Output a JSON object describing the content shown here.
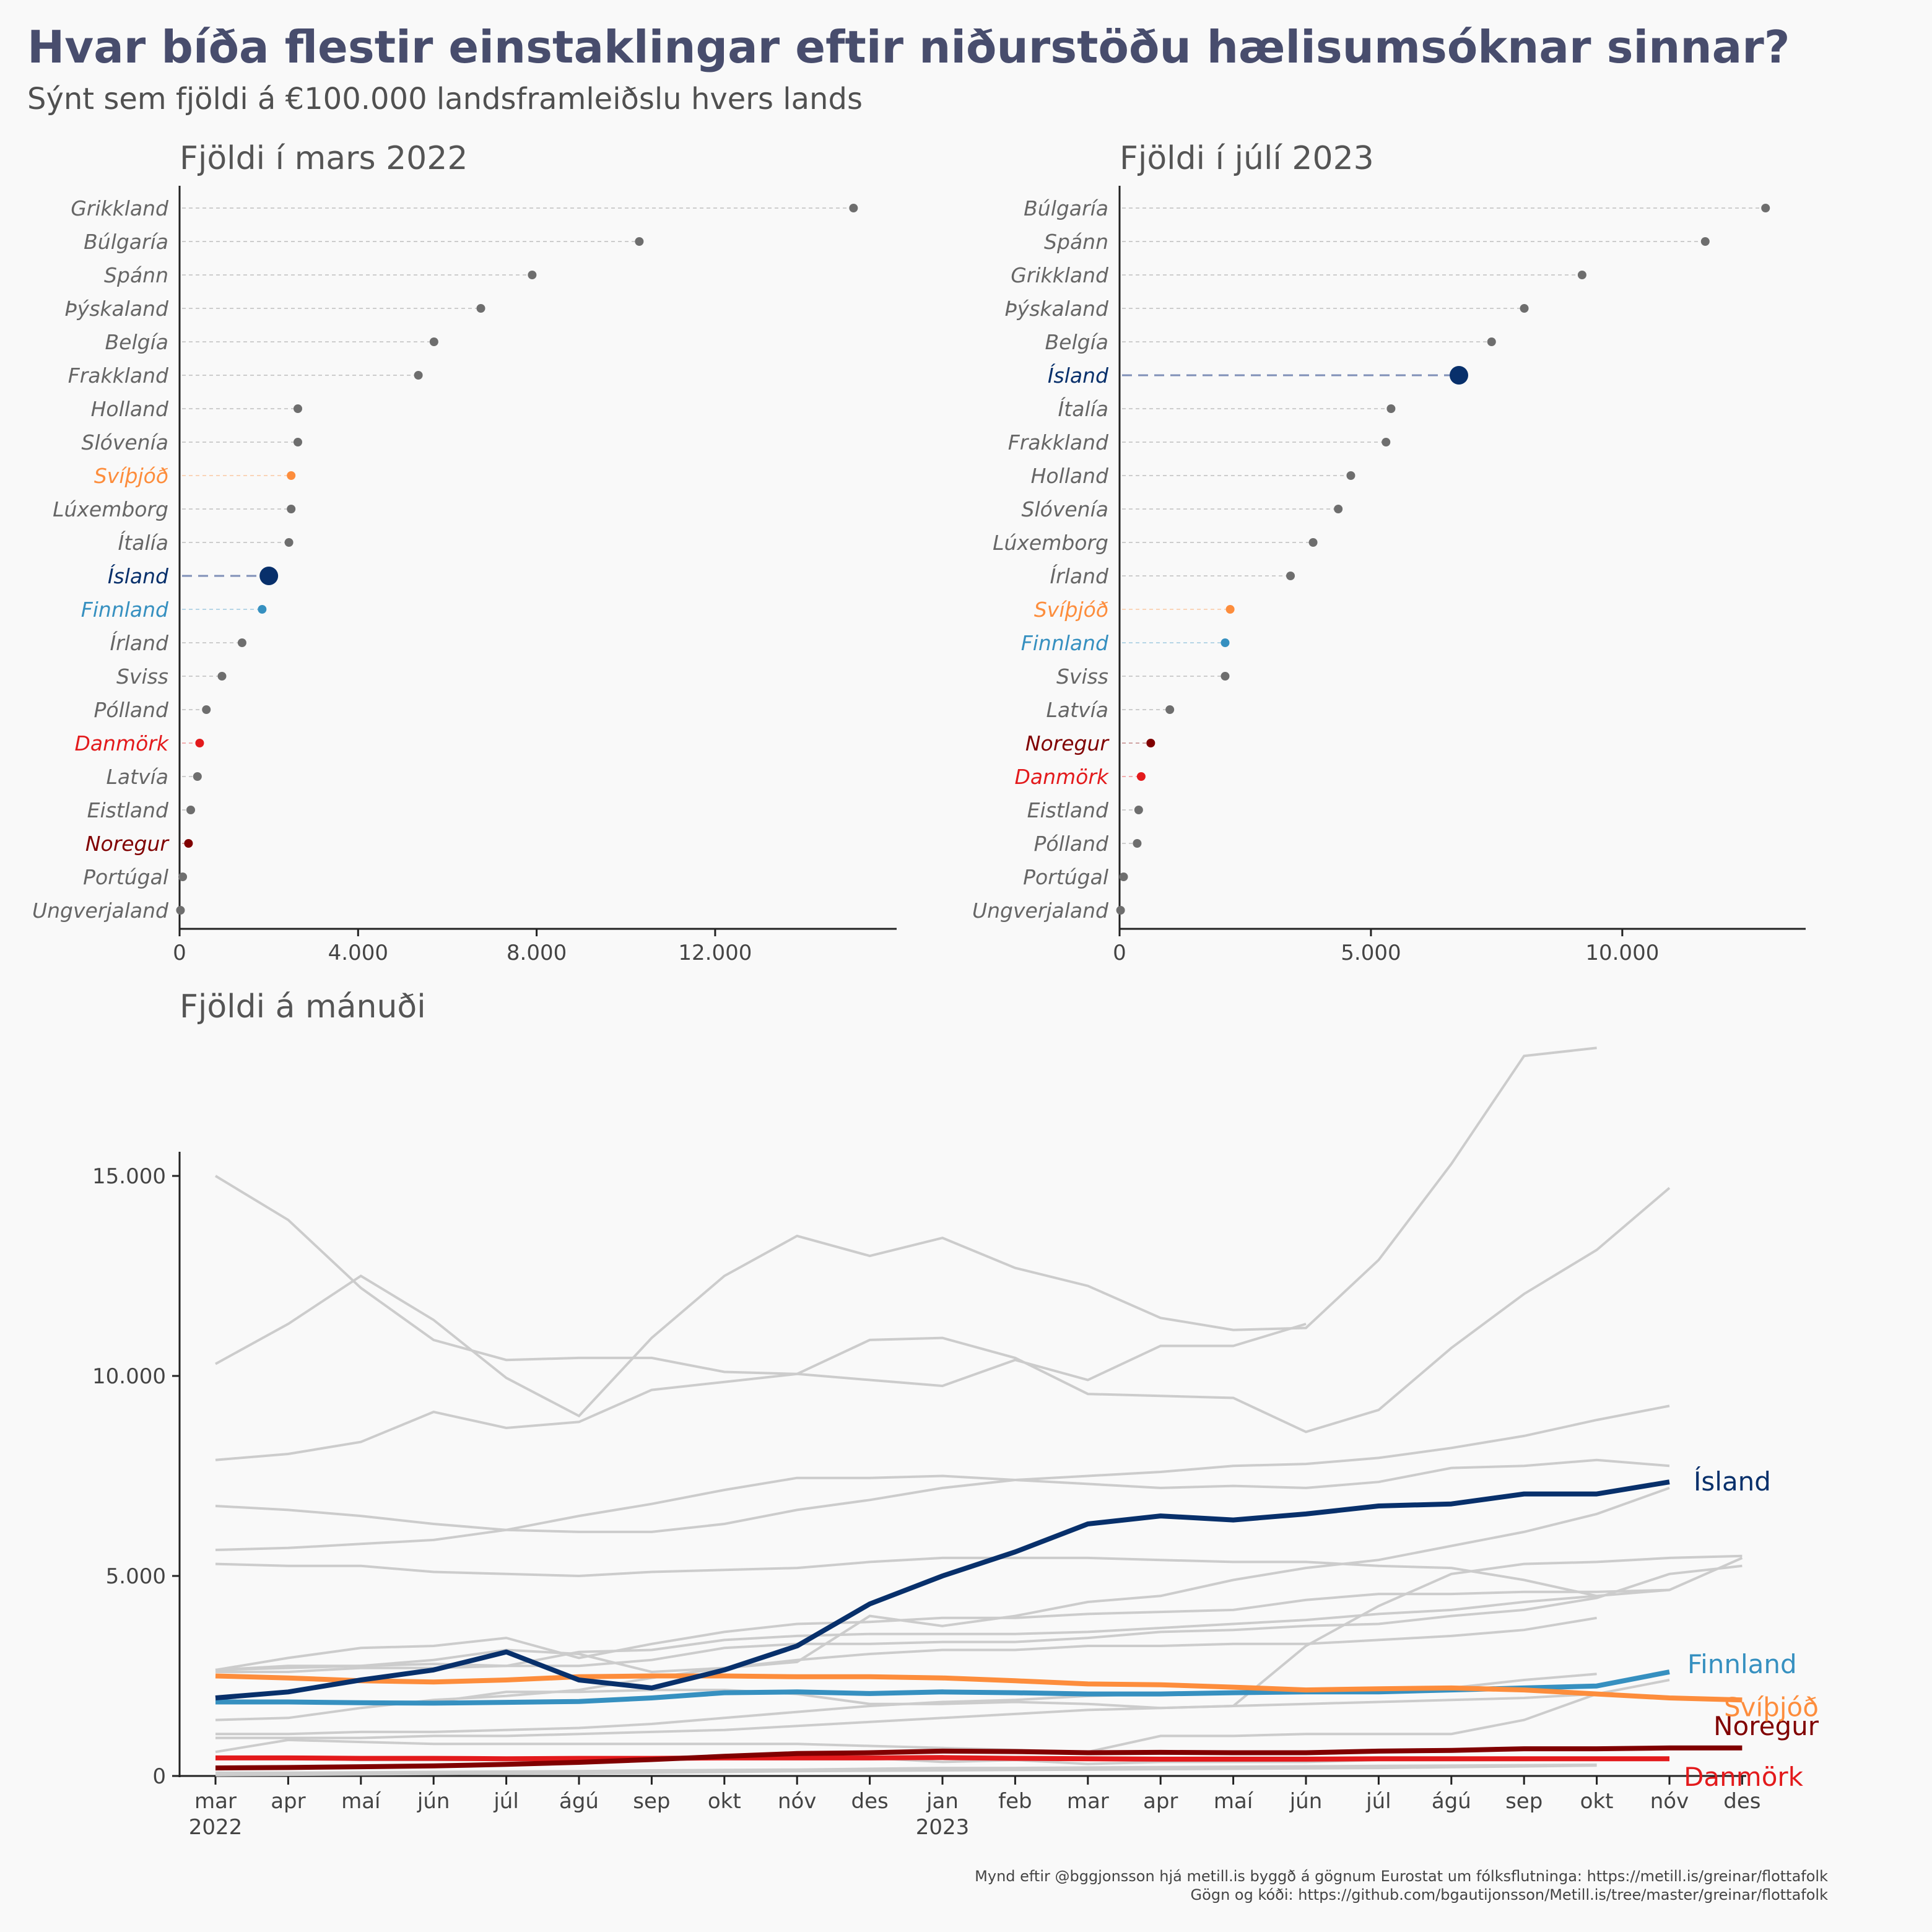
{
  "title": "Hvar bíða flestir einstaklingar eftir niðurstöðu hælisumsóknar sinnar?",
  "subtitle": "Sýnt sem fjöldi á €100.000 landsframleiðslu hvers lands",
  "caption": {
    "line1": "Mynd eftir @bggjonsson hjá metill.is byggð á gögnum Eurostat um fólksflutninga: https://metill.is/greinar/flottafolk",
    "line2": "Gögn og kóði: https://github.com/bgautijonsson/Metill.is/tree/master/greinar/flottafolk"
  },
  "colors": {
    "Ísland": "#08306b",
    "Finnland": "#3690c0",
    "Svíþjóð": "#fd8d3c",
    "Danmörk": "#e31a1c",
    "Noregur": "#800000",
    "other_point": "#6e6e6e",
    "other_line": "#cccccc"
  },
  "chart_data": [
    {
      "type": "scatter",
      "title": "Fjöldi í mars 2022",
      "xlim": [
        0,
        15900
      ],
      "xticks": [
        0,
        4000,
        8000,
        12000
      ],
      "xtick_labels": [
        "0",
        "4.000",
        "8.000",
        "12.000"
      ],
      "categories": [
        "Grikkland",
        "Búlgaría",
        "Spánn",
        "Þýskaland",
        "Belgía",
        "Frakkland",
        "Holland",
        "Slóvenía",
        "Svíþjóð",
        "Lúxemborg",
        "Ítalía",
        "Ísland",
        "Finnland",
        "Írland",
        "Sviss",
        "Pólland",
        "Danmörk",
        "Latvía",
        "Eistland",
        "Noregur",
        "Portúgal",
        "Ungverjaland"
      ],
      "values": [
        15100,
        10300,
        7900,
        6750,
        5700,
        5350,
        2650,
        2650,
        2500,
        2500,
        2450,
        2000,
        1850,
        1400,
        950,
        600,
        450,
        400,
        250,
        200,
        70,
        20
      ]
    },
    {
      "type": "scatter",
      "title": "Fjöldi í júlí 2023",
      "xlim": [
        0,
        13500
      ],
      "xticks": [
        0,
        5000,
        10000
      ],
      "xtick_labels": [
        "0",
        "5.000",
        "10.000"
      ],
      "categories": [
        "Búlgaría",
        "Spánn",
        "Grikkland",
        "Þýskaland",
        "Belgía",
        "Ísland",
        "Ítalía",
        "Frakkland",
        "Holland",
        "Slóvenía",
        "Lúxemborg",
        "Írland",
        "Svíþjóð",
        "Finnland",
        "Sviss",
        "Latvía",
        "Noregur",
        "Danmörk",
        "Eistland",
        "Pólland",
        "Portúgal",
        "Ungverjaland"
      ],
      "values": [
        12850,
        11650,
        9200,
        8050,
        7400,
        6750,
        5400,
        5300,
        4600,
        4350,
        3850,
        3400,
        2200,
        2100,
        2100,
        1000,
        620,
        430,
        380,
        350,
        80,
        20
      ]
    },
    {
      "type": "line",
      "title": "Fjöldi á mánuði",
      "x": [
        "mar 2022",
        "apr",
        "maí",
        "jún",
        "júl",
        "ágú",
        "sep",
        "okt",
        "nóv",
        "des",
        "jan 2023",
        "feb",
        "mar",
        "apr",
        "maí",
        "jún",
        "júl",
        "ágú",
        "sep",
        "okt",
        "nóv",
        "des"
      ],
      "xtick_labels": [
        "mar",
        "apr",
        "maí",
        "jún",
        "júl",
        "ágú",
        "sep",
        "okt",
        "nóv",
        "des",
        "jan",
        "feb",
        "mar",
        "apr",
        "maí",
        "jún",
        "júl",
        "ágú",
        "sep",
        "okt",
        "nóv",
        "des"
      ],
      "year_labels": [
        {
          "index": 0,
          "label": "2022"
        },
        {
          "index": 10,
          "label": "2023"
        }
      ],
      "ylim": [
        0,
        18000
      ],
      "yticks": [
        0,
        5000,
        10000,
        15000
      ],
      "ytick_labels": [
        "0",
        "5.000",
        "10.000",
        "15.000"
      ],
      "series": [
        {
          "name": "Ísland",
          "highlight": true,
          "values": [
            1950,
            2100,
            2400,
            2650,
            3100,
            2400,
            2200,
            2650,
            3250,
            4300,
            5000,
            5600,
            6300,
            6500,
            6400,
            6550,
            6750,
            6800,
            7050,
            7050,
            7350,
            null
          ]
        },
        {
          "name": "Finnland",
          "highlight": true,
          "values": [
            1850,
            1850,
            1830,
            1820,
            1840,
            1860,
            1950,
            2080,
            2100,
            2060,
            2100,
            2080,
            2050,
            2050,
            2080,
            2100,
            2100,
            2150,
            2200,
            2250,
            2600,
            null
          ]
        },
        {
          "name": "Svíþjóð",
          "highlight": true,
          "values": [
            2500,
            2450,
            2380,
            2350,
            2400,
            2480,
            2500,
            2500,
            2480,
            2480,
            2450,
            2380,
            2300,
            2280,
            2220,
            2150,
            2180,
            2200,
            2150,
            2050,
            1950,
            1900
          ]
        },
        {
          "name": "Noregur",
          "highlight": true,
          "values": [
            200,
            210,
            230,
            250,
            290,
            340,
            410,
            490,
            560,
            580,
            620,
            610,
            580,
            590,
            580,
            580,
            620,
            640,
            680,
            680,
            700,
            700
          ]
        },
        {
          "name": "Danmörk",
          "highlight": true,
          "values": [
            450,
            450,
            440,
            440,
            430,
            440,
            440,
            450,
            450,
            450,
            460,
            440,
            430,
            420,
            420,
            420,
            430,
            430,
            430,
            430,
            430,
            null
          ]
        },
        {
          "values": [
            15000,
            13900,
            12200,
            10900,
            10400,
            10450,
            10450,
            10100,
            10050,
            9900,
            9750,
            10400,
            9900,
            10750,
            10750,
            11300,
            null,
            null,
            null,
            null,
            null,
            null
          ]
        },
        {
          "values": [
            10300,
            11300,
            12500,
            11400,
            9950,
            9000,
            10950,
            12500,
            13500,
            13000,
            13450,
            12700,
            12250,
            11450,
            11150,
            11200,
            12900,
            15300,
            18000,
            18200,
            null,
            null
          ]
        },
        {
          "values": [
            7900,
            8050,
            8350,
            9100,
            8700,
            8850,
            9650,
            9850,
            10050,
            10900,
            10950,
            10450,
            9550,
            9500,
            9450,
            8600,
            9150,
            10700,
            12050,
            13150,
            14700,
            null
          ]
        },
        {
          "values": [
            6750,
            6650,
            6500,
            6300,
            6150,
            6100,
            6100,
            6300,
            6650,
            6900,
            7200,
            7400,
            7500,
            7600,
            7750,
            7800,
            7950,
            8200,
            8500,
            8900,
            9250,
            null
          ]
        },
        {
          "values": [
            5650,
            5700,
            5800,
            5900,
            6150,
            6500,
            6800,
            7150,
            7450,
            7450,
            7500,
            7400,
            7300,
            7200,
            7250,
            7200,
            7350,
            7700,
            7750,
            7900,
            7750,
            null
          ]
        },
        {
          "values": [
            5300,
            5250,
            5250,
            5100,
            5050,
            5000,
            5100,
            5150,
            5200,
            5350,
            5450,
            5450,
            5450,
            5400,
            5350,
            5350,
            5250,
            5200,
            4900,
            4500,
            null,
            null
          ]
        },
        {
          "values": [
            2650,
            2950,
            3200,
            3250,
            3450,
            2950,
            3300,
            3600,
            3800,
            3850,
            3950,
            3950,
            4050,
            4100,
            4150,
            4400,
            4550,
            4550,
            4600,
            4600,
            4650,
            null
          ]
        },
        {
          "values": [
            2650,
            2700,
            2750,
            2900,
            3150,
            3050,
            2600,
            2700,
            2850,
            4000,
            3750,
            4000,
            4350,
            4500,
            4900,
            5200,
            5400,
            5750,
            6100,
            6550,
            7200,
            null
          ]
        },
        {
          "values": [
            2650,
            2750,
            2750,
            2800,
            2750,
            3100,
            3150,
            3400,
            3500,
            3550,
            3550,
            3550,
            3600,
            3700,
            3800,
            3900,
            4050,
            4150,
            4350,
            4500,
            4650,
            5450
          ]
        },
        {
          "values": [
            2600,
            2600,
            2700,
            2700,
            2750,
            2750,
            2900,
            3200,
            3300,
            3300,
            3350,
            3350,
            3450,
            3600,
            3650,
            3750,
            3800,
            4000,
            4150,
            4450,
            5050,
            5250
          ]
        },
        {
          "values": [
            1400,
            1450,
            1700,
            1900,
            2000,
            2150,
            2450,
            2700,
            2900,
            3050,
            3150,
            3150,
            3250,
            3250,
            3300,
            3300,
            3400,
            3500,
            3650,
            3950,
            null,
            null
          ]
        },
        {
          "values": [
            1850,
            1850,
            1850,
            1850,
            2100,
            2100,
            2150,
            2150,
            2050,
            1800,
            1800,
            1850,
            1800,
            1700,
            1750,
            3250,
            4250,
            5050,
            5300,
            5350,
            5450,
            5500
          ]
        },
        {
          "values": [
            1050,
            1050,
            1100,
            1100,
            1150,
            1200,
            1300,
            1450,
            1600,
            1750,
            1850,
            1900,
            2000,
            2050,
            2100,
            2150,
            2150,
            2200,
            2400,
            2550,
            null,
            null
          ]
        },
        {
          "values": [
            950,
            950,
            950,
            1000,
            1000,
            1050,
            1100,
            1150,
            1250,
            1350,
            1450,
            1550,
            1650,
            1700,
            1750,
            1800,
            1850,
            1900,
            1950,
            2050,
            null,
            null
          ]
        },
        {
          "values": [
            600,
            900,
            850,
            800,
            800,
            800,
            800,
            800,
            800,
            750,
            700,
            650,
            600,
            1000,
            1000,
            1050,
            1050,
            1050,
            1400,
            2050,
            2400,
            null
          ]
        },
        {
          "values": [
            450,
            450,
            400,
            400,
            400,
            380,
            400,
            500,
            550,
            450,
            350,
            400,
            300,
            350,
            350,
            350,
            400,
            400,
            400,
            420,
            null,
            null
          ]
        },
        {
          "values": [
            80,
            80,
            90,
            100,
            110,
            120,
            140,
            150,
            160,
            180,
            200,
            200,
            210,
            220,
            230,
            240,
            250,
            260,
            270,
            280,
            null,
            null
          ]
        },
        {
          "values": [
            20,
            30,
            40,
            50,
            60,
            70,
            80,
            100,
            120,
            130,
            140,
            150,
            160,
            170,
            180,
            190,
            200,
            220,
            240,
            260,
            null,
            null
          ]
        }
      ]
    }
  ]
}
